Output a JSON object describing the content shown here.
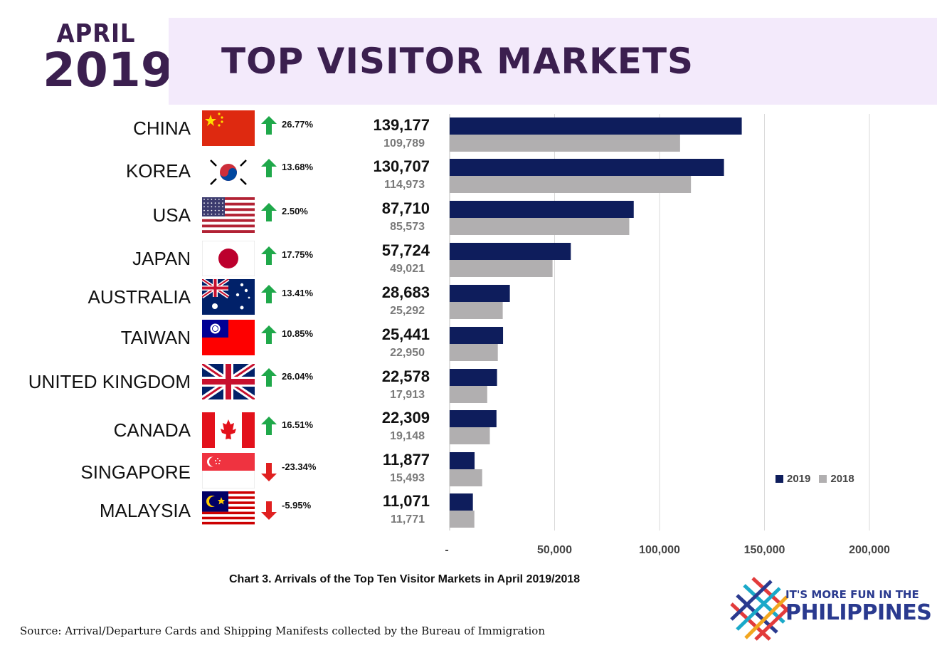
{
  "header": {
    "month": "APRIL",
    "year": "2019",
    "title": "TOP VISITOR MARKETS"
  },
  "colors": {
    "series_2019": "#0e1d5c",
    "series_2018": "#b1afb0",
    "arrow_up": "#1fa84a",
    "arrow_down": "#e02020",
    "title_purple": "#3b1f4f",
    "banner_bg": "#f3eafb"
  },
  "rows": [
    {
      "country": "CHINA",
      "flag": "china-flag",
      "change": "26.77%",
      "direction": "up",
      "v2019_label": "139,177",
      "v2018_label": "109,789"
    },
    {
      "country": "KOREA",
      "flag": "korea-flag",
      "change": "13.68%",
      "direction": "up",
      "v2019_label": "130,707",
      "v2018_label": "114,973"
    },
    {
      "country": "USA",
      "flag": "usa-flag",
      "change": "2.50%",
      "direction": "up",
      "v2019_label": "87,710",
      "v2018_label": "85,573"
    },
    {
      "country": "JAPAN",
      "flag": "japan-flag",
      "change": "17.75%",
      "direction": "up",
      "v2019_label": "57,724",
      "v2018_label": "49,021"
    },
    {
      "country": "AUSTRALIA",
      "flag": "australia-flag",
      "change": "13.41%",
      "direction": "up",
      "v2019_label": "28,683",
      "v2018_label": "25,292"
    },
    {
      "country": "TAIWAN",
      "flag": "taiwan-flag",
      "change": "10.85%",
      "direction": "up",
      "v2019_label": "25,441",
      "v2018_label": "22,950"
    },
    {
      "country": "UNITED KINGDOM",
      "flag": "uk-flag",
      "change": "26.04%",
      "direction": "up",
      "v2019_label": "22,578",
      "v2018_label": "17,913"
    },
    {
      "country": "CANADA",
      "flag": "canada-flag",
      "change": "16.51%",
      "direction": "up",
      "v2019_label": "22,309",
      "v2018_label": "19,148"
    },
    {
      "country": "SINGAPORE",
      "flag": "singapore-flag",
      "change": "-23.34%",
      "direction": "down",
      "v2019_label": "11,877",
      "v2018_label": "15,493"
    },
    {
      "country": "MALAYSIA",
      "flag": "malaysia-flag",
      "change": "-5.95%",
      "direction": "down",
      "v2019_label": "11,071",
      "v2018_label": "11,771"
    }
  ],
  "chart_data": {
    "type": "bar",
    "orientation": "horizontal",
    "categories": [
      "CHINA",
      "KOREA",
      "USA",
      "JAPAN",
      "AUSTRALIA",
      "TAIWAN",
      "UNITED KINGDOM",
      "CANADA",
      "SINGAPORE",
      "MALAYSIA"
    ],
    "series": [
      {
        "name": "2019",
        "values": [
          139177,
          130707,
          87710,
          57724,
          28683,
          25441,
          22578,
          22309,
          11877,
          11071
        ]
      },
      {
        "name": "2018",
        "values": [
          109789,
          114973,
          85573,
          49021,
          25292,
          22950,
          17913,
          19148,
          15493,
          11771
        ]
      }
    ],
    "xlim": [
      0,
      200000
    ],
    "xticks": [
      0,
      50000,
      100000,
      150000,
      200000
    ],
    "xtick_labels": [
      "-",
      "50,000",
      "100,000",
      "150,000",
      "200,000"
    ],
    "grid": "vertical",
    "legend_position": "bottom-right",
    "caption": "Chart 3. Arrivals of the Top Ten Visitor Markets in April 2019/2018"
  },
  "footer": {
    "source": "Source: Arrival/Departure Cards and Shipping Manifests collected by the Bureau of Immigration",
    "logo_line1": "IT'S MORE FUN IN THE",
    "logo_line2": "PHILIPPINES"
  }
}
